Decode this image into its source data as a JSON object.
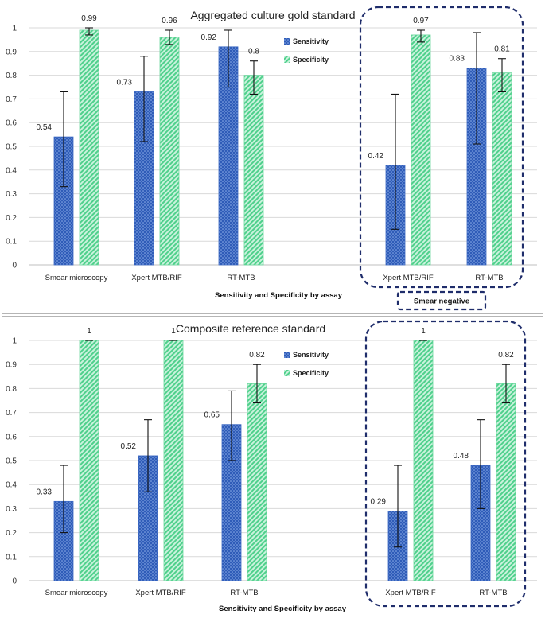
{
  "chart_data": [
    {
      "type": "bar",
      "title": "Aggregated culture gold standard",
      "xlabel": "Sensitivity and Specificity by assay",
      "ylabel": "",
      "ylim": [
        0,
        1
      ],
      "yticks": [
        "0",
        "0.1",
        "0.2",
        "0.3",
        "0.4",
        "0.5",
        "0.6",
        "0.7",
        "0.8",
        "0.9",
        "1"
      ],
      "grid": true,
      "legend_position": "top-right",
      "categories": [
        "Smear microscopy",
        "Xpert MTB/RIF",
        "RT-MTB",
        "Xpert MTB/RIF",
        "RT-MTB"
      ],
      "series": [
        {
          "name": "Sensitivity",
          "color": "#2f5cb8",
          "values": [
            0.54,
            0.73,
            0.92,
            0.42,
            0.83
          ],
          "labels": [
            "0.54",
            "0.73",
            "0.92",
            "0.42",
            "0.83"
          ],
          "err_low": [
            0.33,
            0.52,
            0.75,
            0.15,
            0.51
          ],
          "err_high": [
            0.73,
            0.88,
            0.99,
            0.72,
            0.98
          ]
        },
        {
          "name": "Specificity",
          "color": "#4fd08c",
          "values": [
            0.99,
            0.96,
            0.8,
            0.97,
            0.81
          ],
          "labels": [
            "0.99",
            "0.96",
            "0.8",
            "0.97",
            "0.81"
          ],
          "err_low": [
            0.97,
            0.93,
            0.72,
            0.94,
            0.73
          ],
          "err_high": [
            1.0,
            0.99,
            0.86,
            0.99,
            0.87
          ]
        }
      ],
      "highlight_group_label": "Smear negative"
    },
    {
      "type": "bar",
      "title": "Composite reference standard",
      "xlabel": "Sensitivity and Specificity by assay",
      "ylabel": "",
      "ylim": [
        0,
        1
      ],
      "yticks": [
        "0",
        "0.1",
        "0.2",
        "0.3",
        "0.4",
        "0.5",
        "0.6",
        "0.7",
        "0.8",
        "0.9",
        "1"
      ],
      "grid": true,
      "legend_position": "top-right",
      "categories": [
        "Smear microscopy",
        "Xpert MTB/RIF",
        "RT-MTB",
        "Xpert MTB/RIF",
        "RT-MTB"
      ],
      "series": [
        {
          "name": "Sensitivity",
          "color": "#2f5cb8",
          "values": [
            0.33,
            0.52,
            0.65,
            0.29,
            0.48
          ],
          "labels": [
            "0.33",
            "0.52",
            "0.65",
            "0.29",
            "0.48"
          ],
          "err_low": [
            0.2,
            0.37,
            0.5,
            0.14,
            0.3
          ],
          "err_high": [
            0.48,
            0.67,
            0.79,
            0.48,
            0.67
          ]
        },
        {
          "name": "Specificity",
          "color": "#4fd08c",
          "values": [
            1.0,
            1.0,
            0.82,
            1.0,
            0.82
          ],
          "labels": [
            "1",
            "1",
            "0.82",
            "1",
            "0.82"
          ],
          "err_low": [
            1.0,
            1.0,
            0.74,
            1.0,
            0.74
          ],
          "err_high": [
            1.0,
            1.0,
            0.9,
            1.0,
            0.9
          ]
        }
      ]
    }
  ]
}
